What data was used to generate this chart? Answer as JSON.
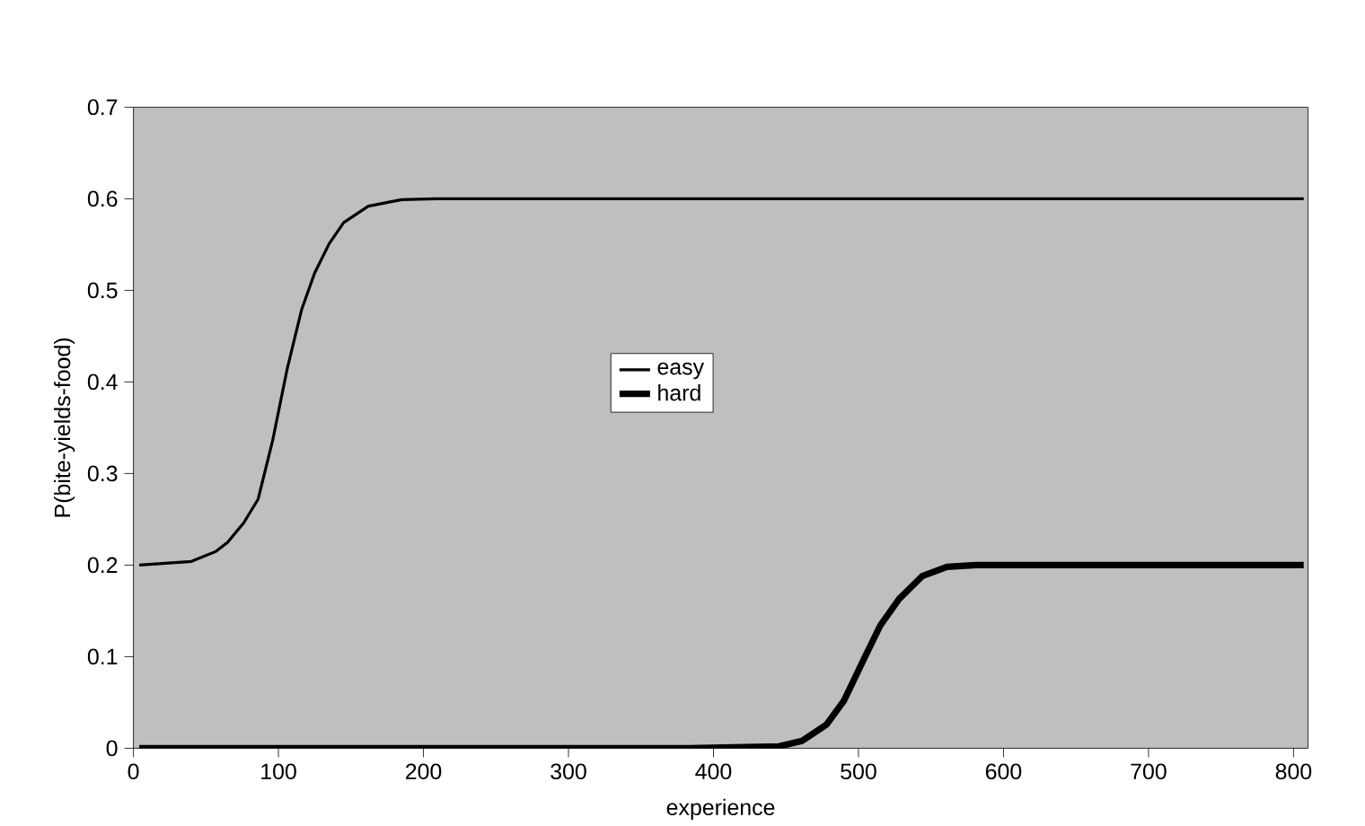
{
  "chart_data": {
    "type": "line",
    "xlabel": "experience",
    "ylabel": "P(bite-yields-food)",
    "xlim": [
      0,
      810
    ],
    "xticks": [
      0,
      100,
      200,
      300,
      400,
      500,
      600,
      700,
      800
    ],
    "ylim": [
      0,
      0.7
    ],
    "yticks": [
      0,
      0.1,
      0.2,
      0.3,
      0.4,
      0.5,
      0.6,
      0.7
    ],
    "grid": false,
    "legend": "center",
    "marker": "none",
    "line_style": "solid",
    "series": [
      {
        "name": "easy",
        "color": "#000000",
        "x": [
          4,
          40,
          57,
          65,
          76,
          86,
          96,
          106,
          116,
          125,
          135,
          145,
          162,
          185,
          209,
          807
        ],
        "values": [
          0.2,
          0.204,
          0.215,
          0.225,
          0.246,
          0.272,
          0.336,
          0.414,
          0.479,
          0.519,
          0.551,
          0.574,
          0.592,
          0.599,
          0.6,
          0.6
        ]
      },
      {
        "name": "hard",
        "color": "#000000",
        "x": [
          4,
          383,
          445,
          461,
          478,
          490,
          503,
          515,
          528,
          544,
          561,
          581,
          807
        ],
        "values": [
          0,
          0,
          0.002,
          0.008,
          0.026,
          0.052,
          0.095,
          0.134,
          0.163,
          0.188,
          0.198,
          0.2,
          0.2
        ]
      }
    ]
  }
}
